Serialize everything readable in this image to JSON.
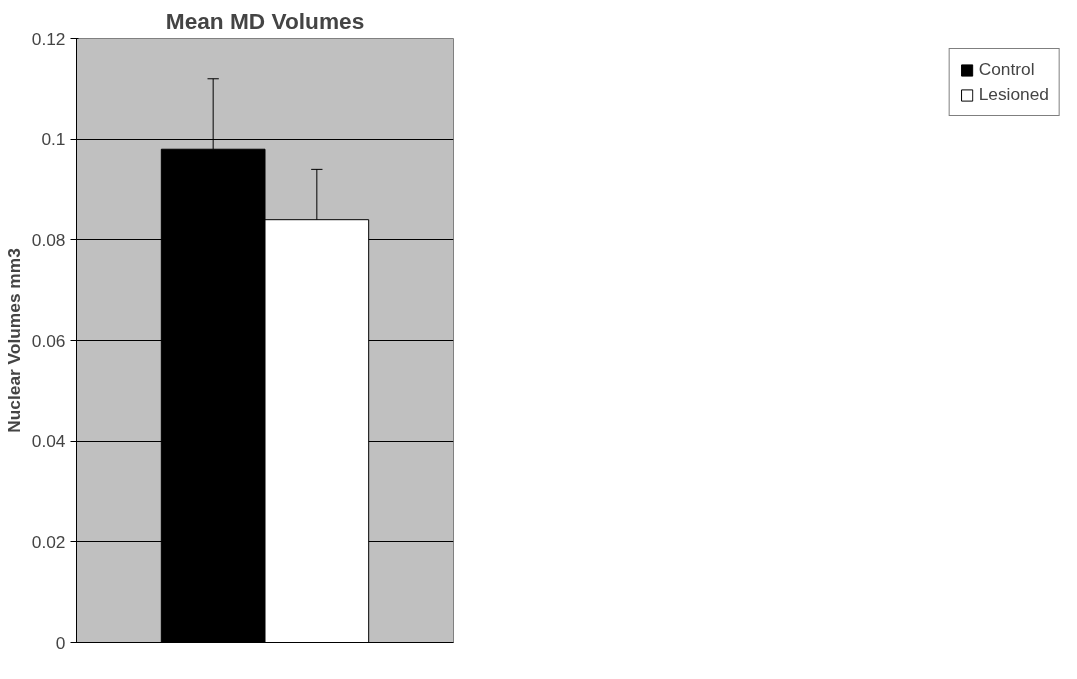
{
  "chart_data": {
    "type": "bar",
    "title": "Mean MD Volumes",
    "ylabel": "Nuclear Volumes mm3",
    "categories": [
      null
    ],
    "series": [
      {
        "name": "Control",
        "color": "#000000",
        "values": [
          0.098
        ],
        "errors": [
          [
            0.098,
            0.112
          ]
        ]
      },
      {
        "name": "Lesioned",
        "color": "#ffffff",
        "values": [
          0.084
        ],
        "errors": [
          [
            0.084,
            0.094
          ]
        ]
      }
    ],
    "ylim": [
      0,
      0.12
    ],
    "yticks": [
      0,
      0.02,
      0.04,
      0.06,
      0.08,
      0.1,
      0.12
    ],
    "grid": "y",
    "legend": "right"
  }
}
